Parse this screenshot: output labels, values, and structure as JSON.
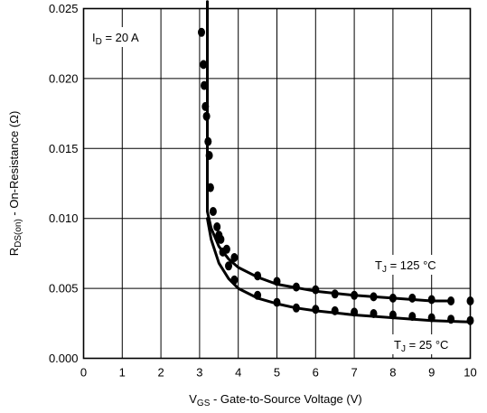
{
  "chart_data": {
    "type": "scatter",
    "title": "",
    "xlabel": {
      "main": "V",
      "sub": "GS",
      "rest": " - Gate-to-Source Voltage (V)"
    },
    "ylabel": {
      "main": "R",
      "sub": "DS(on)",
      "rest": " - On-Resistance (Ω)"
    },
    "xlim": [
      0,
      10
    ],
    "ylim": [
      0,
      0.025
    ],
    "xticks": [
      "0",
      "1",
      "2",
      "3",
      "4",
      "5",
      "6",
      "7",
      "8",
      "9",
      "10"
    ],
    "yticks": [
      "0.000",
      "0.005",
      "0.010",
      "0.015",
      "0.020",
      "0.025"
    ],
    "grid": true,
    "annotations": [
      {
        "main": "I",
        "sub": "D",
        "rest": " = 20 A"
      },
      {
        "main": "T",
        "sub": "J",
        "rest": " = 125 °C"
      },
      {
        "main": "T",
        "sub": "J",
        "rest": " = 25 °C"
      }
    ],
    "series": [
      {
        "kind": "points",
        "condition": "TJ = 125 °C",
        "x": [
          3.05,
          3.1,
          3.12,
          3.15,
          3.18,
          3.22,
          3.25,
          3.28,
          3.35,
          3.45,
          3.55,
          3.7,
          3.9,
          4.5,
          5.0,
          5.5,
          6.0,
          6.5,
          7.0,
          7.5,
          8.0,
          8.5,
          9.0,
          9.5,
          10.0
        ],
        "y": [
          0.0233,
          0.021,
          0.0195,
          0.018,
          0.0173,
          0.0155,
          0.0145,
          0.0122,
          0.0105,
          0.0094,
          0.0085,
          0.0078,
          0.0072,
          0.0059,
          0.0055,
          0.0051,
          0.0049,
          0.0046,
          0.0045,
          0.0044,
          0.0043,
          0.0043,
          0.0042,
          0.0041,
          0.0041
        ]
      },
      {
        "kind": "points",
        "condition": "TJ = 25 °C",
        "x": [
          3.5,
          3.6,
          3.75,
          3.9,
          4.5,
          5.0,
          5.5,
          6.0,
          6.5,
          7.0,
          7.5,
          8.0,
          8.5,
          9.0,
          9.5,
          10.0
        ],
        "y": [
          0.0088,
          0.0076,
          0.0066,
          0.0056,
          0.0045,
          0.004,
          0.0036,
          0.0035,
          0.0034,
          0.0033,
          0.0032,
          0.0031,
          0.003,
          0.0029,
          0.0028,
          0.0027
        ]
      },
      {
        "kind": "curve",
        "condition": "TJ = 125 °C",
        "x": [
          3.2,
          3.2,
          3.3,
          3.5,
          3.75,
          4.0,
          4.5,
          5.0,
          6.0,
          7.0,
          8.0,
          9.0,
          9.5
        ],
        "y": [
          0.0255,
          0.0105,
          0.0093,
          0.008,
          0.0071,
          0.0065,
          0.0058,
          0.0053,
          0.0048,
          0.0045,
          0.0043,
          0.0041,
          0.0041
        ]
      },
      {
        "kind": "curve",
        "condition": "TJ = 25 °C",
        "x": [
          3.2,
          3.3,
          3.5,
          3.75,
          4.0,
          4.5,
          5.0,
          5.5,
          6.0,
          7.0,
          8.0,
          9.0,
          10.0
        ],
        "y": [
          0.01,
          0.0085,
          0.0068,
          0.0057,
          0.005,
          0.0043,
          0.0039,
          0.0036,
          0.0034,
          0.0031,
          0.0029,
          0.0027,
          0.0026
        ]
      }
    ]
  }
}
